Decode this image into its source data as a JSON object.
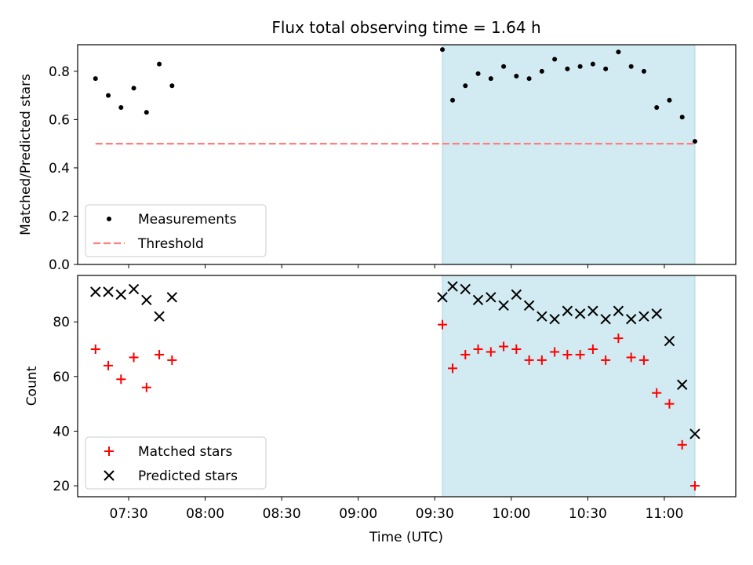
{
  "chart_data": [
    {
      "type": "scatter",
      "title": "Flux total observing time = 1.64 h",
      "xlabel": "",
      "ylabel": "Matched/Predicted stars",
      "ylim": [
        0,
        0.91
      ],
      "yticks": [
        "0.0",
        "0.2",
        "0.4",
        "0.6",
        "0.8"
      ],
      "xlim": [
        "07:10",
        "11:28"
      ],
      "highlight_span": {
        "from": "09:33",
        "to": "11:12",
        "color": "#add8e6"
      },
      "grid": false,
      "legend_position": "lower-left",
      "series": [
        {
          "name": "Measurements",
          "kind": "scatter",
          "marker": "dot",
          "color": "#000000",
          "x": [
            "07:17",
            "07:22",
            "07:27",
            "07:32",
            "07:37",
            "07:42",
            "07:47",
            "09:33",
            "09:37",
            "09:42",
            "09:47",
            "09:52",
            "09:57",
            "10:02",
            "10:07",
            "10:12",
            "10:17",
            "10:22",
            "10:27",
            "10:32",
            "10:37",
            "10:42",
            "10:47",
            "10:52",
            "10:57",
            "11:02",
            "11:07",
            "11:12"
          ],
          "y": [
            0.77,
            0.7,
            0.65,
            0.73,
            0.63,
            0.83,
            0.74,
            0.89,
            0.68,
            0.74,
            0.79,
            0.77,
            0.82,
            0.78,
            0.77,
            0.8,
            0.85,
            0.81,
            0.82,
            0.83,
            0.81,
            0.88,
            0.82,
            0.8,
            0.65,
            0.68,
            0.61,
            0.51
          ]
        },
        {
          "name": "Threshold",
          "kind": "line",
          "style": "dashed",
          "color": "#ff7f7f",
          "x": [
            "07:17",
            "11:12"
          ],
          "y": [
            0.5,
            0.5
          ]
        }
      ]
    },
    {
      "type": "scatter",
      "title": "",
      "xlabel": "Time (UTC)",
      "ylabel": "Count",
      "ylim": [
        16,
        97
      ],
      "yticks": [
        "20",
        "40",
        "60",
        "80"
      ],
      "xlim": [
        "07:10",
        "11:28"
      ],
      "xticks": [
        "07:30",
        "08:00",
        "08:30",
        "09:00",
        "09:30",
        "10:00",
        "10:30",
        "11:00"
      ],
      "highlight_span": {
        "from": "09:33",
        "to": "11:12",
        "color": "#add8e6"
      },
      "grid": false,
      "legend_position": "lower-left",
      "series": [
        {
          "name": "Matched stars",
          "kind": "scatter",
          "marker": "plus",
          "color": "#ff0000",
          "x": [
            "07:17",
            "07:22",
            "07:27",
            "07:32",
            "07:37",
            "07:42",
            "07:47",
            "09:33",
            "09:37",
            "09:42",
            "09:47",
            "09:52",
            "09:57",
            "10:02",
            "10:07",
            "10:12",
            "10:17",
            "10:22",
            "10:27",
            "10:32",
            "10:37",
            "10:42",
            "10:47",
            "10:52",
            "10:57",
            "11:02",
            "11:07",
            "11:12"
          ],
          "y": [
            70,
            64,
            59,
            67,
            56,
            68,
            66,
            79,
            63,
            68,
            70,
            69,
            71,
            70,
            66,
            66,
            69,
            68,
            68,
            70,
            66,
            74,
            67,
            66,
            54,
            50,
            35,
            20
          ]
        },
        {
          "name": "Predicted stars",
          "kind": "scatter",
          "marker": "x",
          "color": "#000000",
          "x": [
            "07:17",
            "07:22",
            "07:27",
            "07:32",
            "07:37",
            "07:42",
            "07:47",
            "09:33",
            "09:37",
            "09:42",
            "09:47",
            "09:52",
            "09:57",
            "10:02",
            "10:07",
            "10:12",
            "10:17",
            "10:22",
            "10:27",
            "10:32",
            "10:37",
            "10:42",
            "10:47",
            "10:52",
            "10:57",
            "11:02",
            "11:07",
            "11:12"
          ],
          "y": [
            91,
            91,
            90,
            92,
            88,
            82,
            89,
            89,
            93,
            92,
            88,
            89,
            86,
            90,
            86,
            82,
            81,
            84,
            83,
            84,
            81,
            84,
            81,
            82,
            83,
            73,
            57,
            39
          ]
        }
      ]
    }
  ]
}
